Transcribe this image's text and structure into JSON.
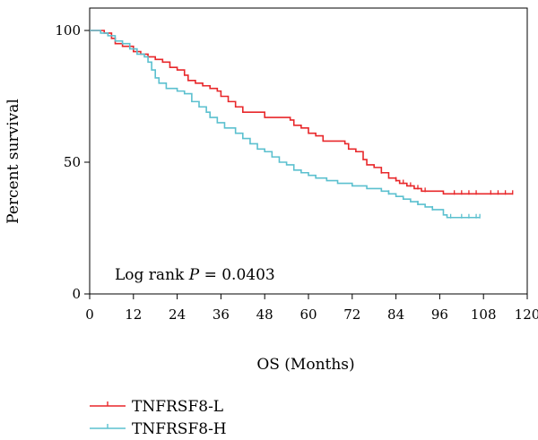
{
  "chart_data": {
    "type": "line",
    "subtype": "kaplan-meier",
    "title": "",
    "xlabel": "OS (Months)",
    "ylabel": "Percent survival",
    "xlim": [
      0,
      120
    ],
    "ylim": [
      0,
      100
    ],
    "x_ticks": [
      0,
      12,
      24,
      36,
      48,
      60,
      72,
      84,
      96,
      108,
      120
    ],
    "y_ticks": [
      0,
      50,
      100
    ],
    "grid": false,
    "legend_position": "bottom-left",
    "annotation": {
      "prefix": "Log rank ",
      "stat": "P",
      "suffix": " = 0.0403"
    },
    "series": [
      {
        "name": "TNFRSF8-L",
        "color": "#e8272a",
        "steps": [
          [
            0,
            100
          ],
          [
            4,
            99
          ],
          [
            6,
            97
          ],
          [
            7,
            95
          ],
          [
            9,
            94
          ],
          [
            12,
            92
          ],
          [
            14,
            91
          ],
          [
            16,
            90
          ],
          [
            18,
            89
          ],
          [
            20,
            88
          ],
          [
            22,
            86
          ],
          [
            24,
            85
          ],
          [
            26,
            83
          ],
          [
            27,
            81
          ],
          [
            29,
            80
          ],
          [
            31,
            79
          ],
          [
            33,
            78
          ],
          [
            35,
            77
          ],
          [
            36,
            75
          ],
          [
            38,
            73
          ],
          [
            40,
            71
          ],
          [
            42,
            69
          ],
          [
            48,
            67
          ],
          [
            55,
            66
          ],
          [
            56,
            64
          ],
          [
            58,
            63
          ],
          [
            60,
            61
          ],
          [
            62,
            60
          ],
          [
            64,
            58
          ],
          [
            70,
            57
          ],
          [
            71,
            55
          ],
          [
            73,
            54
          ],
          [
            75,
            51
          ],
          [
            76,
            49
          ],
          [
            78,
            48
          ],
          [
            80,
            46
          ],
          [
            82,
            44
          ],
          [
            84,
            43
          ],
          [
            85,
            42
          ],
          [
            87,
            41
          ],
          [
            89,
            40
          ],
          [
            91,
            39
          ],
          [
            97,
            38
          ],
          [
            116,
            38
          ]
        ],
        "censored": [
          [
            80,
            46
          ],
          [
            84,
            43
          ],
          [
            86,
            42
          ],
          [
            88,
            41
          ],
          [
            90,
            40
          ],
          [
            92,
            39
          ],
          [
            100,
            38
          ],
          [
            102,
            38
          ],
          [
            104,
            38
          ],
          [
            106,
            38
          ],
          [
            110,
            38
          ],
          [
            112,
            38
          ],
          [
            114,
            38
          ],
          [
            116,
            38
          ]
        ]
      },
      {
        "name": "TNFRSF8-H",
        "color": "#5bc0cf",
        "steps": [
          [
            0,
            100
          ],
          [
            3,
            99
          ],
          [
            5,
            98
          ],
          [
            7,
            96
          ],
          [
            9,
            95
          ],
          [
            11,
            93
          ],
          [
            13,
            91
          ],
          [
            15,
            90
          ],
          [
            16,
            88
          ],
          [
            17,
            85
          ],
          [
            18,
            82
          ],
          [
            19,
            80
          ],
          [
            21,
            78
          ],
          [
            24,
            77
          ],
          [
            26,
            76
          ],
          [
            28,
            73
          ],
          [
            30,
            71
          ],
          [
            32,
            69
          ],
          [
            33,
            67
          ],
          [
            35,
            65
          ],
          [
            37,
            63
          ],
          [
            40,
            61
          ],
          [
            42,
            59
          ],
          [
            44,
            57
          ],
          [
            46,
            55
          ],
          [
            48,
            54
          ],
          [
            50,
            52
          ],
          [
            52,
            50
          ],
          [
            54,
            49
          ],
          [
            56,
            47
          ],
          [
            58,
            46
          ],
          [
            60,
            45
          ],
          [
            62,
            44
          ],
          [
            65,
            43
          ],
          [
            68,
            42
          ],
          [
            72,
            41
          ],
          [
            76,
            40
          ],
          [
            80,
            39
          ],
          [
            82,
            38
          ],
          [
            84,
            37
          ],
          [
            86,
            36
          ],
          [
            88,
            35
          ],
          [
            90,
            34
          ],
          [
            92,
            33
          ],
          [
            94,
            32
          ],
          [
            97,
            30
          ],
          [
            98,
            29
          ],
          [
            107,
            29
          ]
        ],
        "censored": [
          [
            82,
            38
          ],
          [
            90,
            34
          ],
          [
            94,
            32
          ],
          [
            99,
            29
          ],
          [
            102,
            29
          ],
          [
            104,
            29
          ],
          [
            106,
            29
          ],
          [
            107,
            29
          ]
        ]
      }
    ]
  }
}
